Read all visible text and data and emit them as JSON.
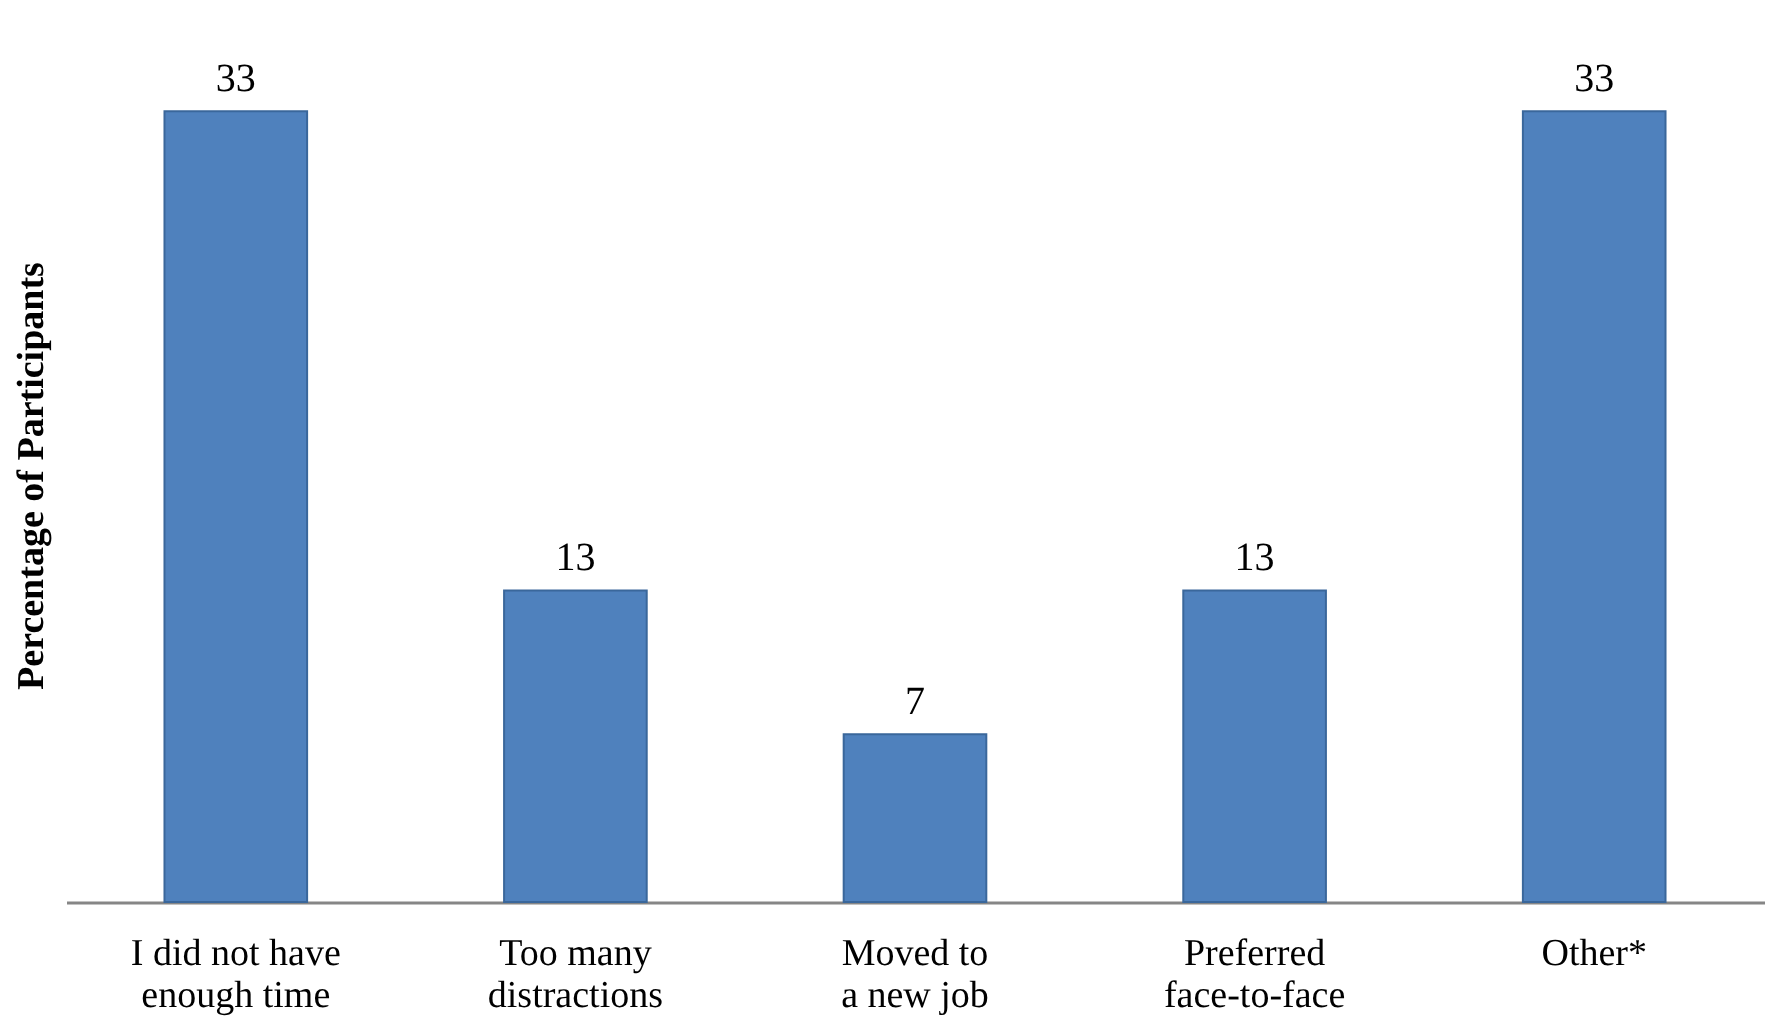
{
  "chart_data": {
    "type": "bar",
    "ylabel": "Percentage of Participants",
    "categories": [
      "I did not have enough time",
      "Too many distractions",
      "Moved to a new job",
      "Preferred face-to-face",
      "Other*"
    ],
    "values": [
      33,
      13,
      7,
      13,
      33
    ],
    "color": "#4f81bd",
    "data_labels": true,
    "grid": false
  }
}
